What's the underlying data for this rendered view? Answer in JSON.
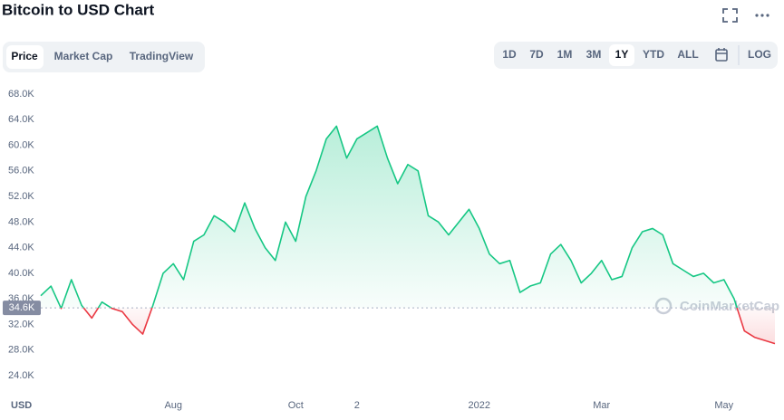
{
  "header": {
    "title": "Bitcoin to USD Chart"
  },
  "tabs": [
    "Price",
    "Market Cap",
    "TradingView"
  ],
  "ranges": [
    "1D",
    "7D",
    "1M",
    "3M",
    "1Y",
    "YTD",
    "ALL"
  ],
  "log_button": "LOG",
  "chart_data": {
    "type": "line",
    "currency": "USD",
    "watermark": "CoinMarketCap",
    "categories": [
      null,
      null,
      null,
      null,
      null,
      null,
      null,
      null,
      null,
      null,
      null,
      null,
      null,
      "Aug",
      null,
      null,
      null,
      null,
      null,
      null,
      null,
      null,
      null,
      null,
      null,
      "Oct",
      null,
      null,
      null,
      null,
      null,
      "2",
      null,
      null,
      null,
      null,
      null,
      null,
      null,
      null,
      null,
      null,
      null,
      "2022",
      null,
      null,
      null,
      null,
      null,
      null,
      null,
      null,
      null,
      null,
      null,
      "Mar",
      null,
      null,
      null,
      null,
      null,
      null,
      null,
      null,
      null,
      null,
      null,
      "May",
      null,
      null,
      null,
      null,
      null
    ],
    "series": [
      {
        "name": "Price",
        "values": [
          36500,
          38000,
          34500,
          39000,
          35000,
          33000,
          35500,
          34500,
          34000,
          32000,
          30500,
          35000,
          40000,
          41500,
          39000,
          45000,
          46000,
          49000,
          48000,
          46500,
          51000,
          47000,
          44000,
          42000,
          48000,
          45000,
          52000,
          56000,
          61000,
          63000,
          58000,
          61000,
          62000,
          63000,
          58000,
          54000,
          57000,
          56000,
          49000,
          48000,
          46000,
          48000,
          50000,
          47000,
          43000,
          41500,
          42000,
          37000,
          38000,
          38500,
          43000,
          44500,
          42000,
          38500,
          40000,
          42000,
          39000,
          39500,
          44000,
          46500,
          47000,
          46000,
          41500,
          40500,
          39500,
          40000,
          38500,
          39000,
          36000,
          31000,
          30000,
          29500,
          29000
        ]
      }
    ],
    "up_color": "#16c784",
    "down_color": "#ea3943",
    "baseline": {
      "value": 34600,
      "label": "34.6K"
    },
    "ylim": [
      24000,
      68000
    ],
    "yticks": [
      {
        "value": 24000,
        "label": "24.0K"
      },
      {
        "value": 28000,
        "label": "28.0K"
      },
      {
        "value": 32000,
        "label": "32.0K"
      },
      {
        "value": 36000,
        "label": "36.0K"
      },
      {
        "value": 40000,
        "label": "40.0K"
      },
      {
        "value": 44000,
        "label": "44.0K"
      },
      {
        "value": 48000,
        "label": "48.0K"
      },
      {
        "value": 52000,
        "label": "52.0K"
      },
      {
        "value": 56000,
        "label": "56.0K"
      },
      {
        "value": 60000,
        "label": "60.0K"
      },
      {
        "value": 64000,
        "label": "64.0K"
      },
      {
        "value": 68000,
        "label": "68.0K"
      }
    ],
    "grid": false
  }
}
